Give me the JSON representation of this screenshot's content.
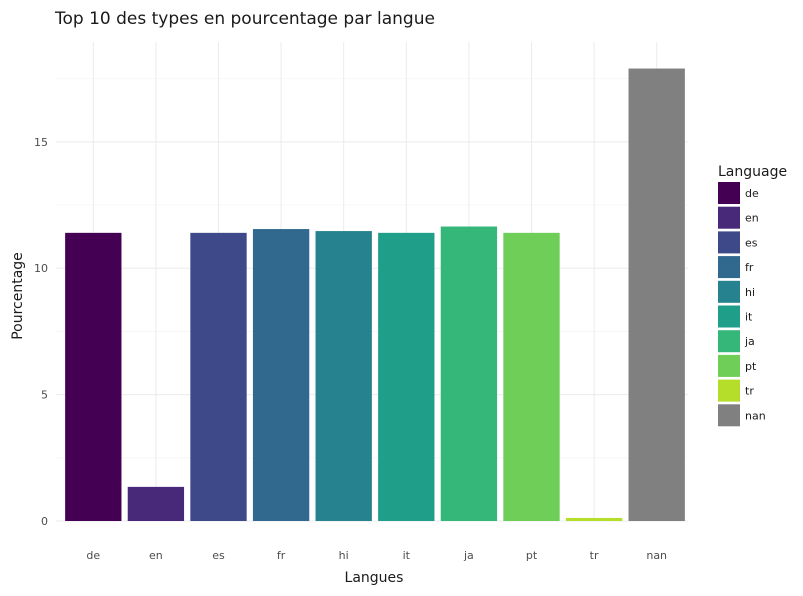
{
  "chart_data": {
    "type": "bar",
    "title": "Top 10 des types en pourcentage par langue",
    "xlabel": "Langues",
    "ylabel": "Pourcentage",
    "categories": [
      "de",
      "en",
      "es",
      "fr",
      "hi",
      "it",
      "ja",
      "pt",
      "tr",
      "nan"
    ],
    "values": [
      11.4,
      1.35,
      11.4,
      11.55,
      11.47,
      11.4,
      11.65,
      11.4,
      0.12,
      17.9
    ],
    "colors": [
      "#440154",
      "#482878",
      "#3e4989",
      "#31688e",
      "#26828e",
      "#1f9e89",
      "#35b779",
      "#6ece58",
      "#b5de2b",
      "#808080"
    ],
    "ylim": [
      0,
      18.95
    ],
    "yticks": [
      0,
      5,
      10,
      15
    ],
    "grid": true,
    "legend": {
      "title": "Language",
      "position": "right",
      "entries": [
        "de",
        "en",
        "es",
        "fr",
        "hi",
        "it",
        "ja",
        "pt",
        "tr",
        "nan"
      ]
    }
  }
}
